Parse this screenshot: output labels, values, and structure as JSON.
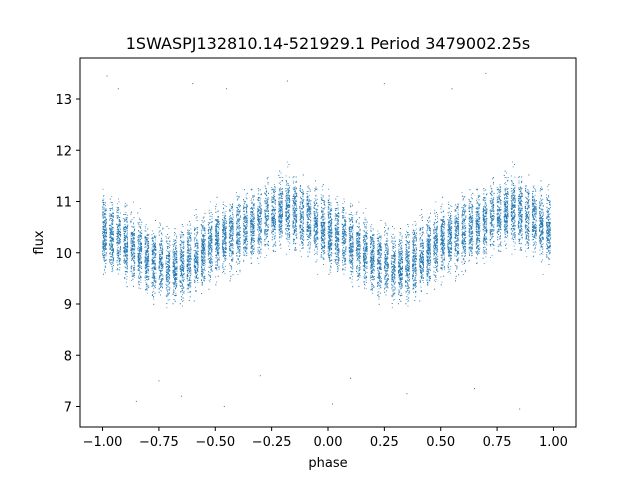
{
  "chart_data": {
    "type": "scatter",
    "title": "1SWASPJ132810.14-521929.1 Period 3479002.25s",
    "xlabel": "phase",
    "ylabel": "flux",
    "xlim": [
      -1.1,
      1.1
    ],
    "ylim": [
      6.6,
      13.8
    ],
    "xticks": [
      -1.0,
      -0.75,
      -0.5,
      -0.25,
      0.0,
      0.25,
      0.5,
      0.75,
      1.0
    ],
    "xtick_labels": [
      "−1.00",
      "−0.75",
      "−0.50",
      "−0.25",
      "0.00",
      "0.25",
      "0.50",
      "0.75",
      "1.00"
    ],
    "yticks": [
      7,
      8,
      9,
      10,
      11,
      12,
      13
    ],
    "ytick_labels": [
      "7",
      "8",
      "9",
      "10",
      "11",
      "12",
      "13"
    ],
    "grid": false,
    "marker_color": "#1f77b4",
    "phase_profile": {
      "phase": [
        0.0,
        0.1,
        0.2,
        0.3,
        0.4,
        0.5,
        0.6,
        0.7,
        0.8,
        0.9,
        1.0
      ],
      "median_flux": [
        10.4,
        10.2,
        9.9,
        9.7,
        9.9,
        10.2,
        10.4,
        10.6,
        10.85,
        10.7,
        10.4
      ],
      "spread": 0.45
    },
    "series": [
      {
        "values": [
          [
            -0.98,
            13.45
          ],
          [
            -0.93,
            13.2
          ],
          [
            -0.6,
            13.3
          ],
          [
            -0.45,
            13.2
          ],
          [
            -0.18,
            13.35
          ],
          [
            0.25,
            13.3
          ],
          [
            0.55,
            13.2
          ],
          [
            0.7,
            13.5
          ],
          [
            0.02,
            7.05
          ],
          [
            -0.46,
            7.0
          ],
          [
            0.35,
            7.25
          ],
          [
            -0.65,
            7.2
          ],
          [
            0.85,
            6.95
          ],
          [
            -0.85,
            7.1
          ],
          [
            0.1,
            7.55
          ],
          [
            -0.3,
            7.6
          ],
          [
            0.65,
            7.35
          ],
          [
            -0.75,
            7.5
          ]
        ]
      }
    ]
  }
}
